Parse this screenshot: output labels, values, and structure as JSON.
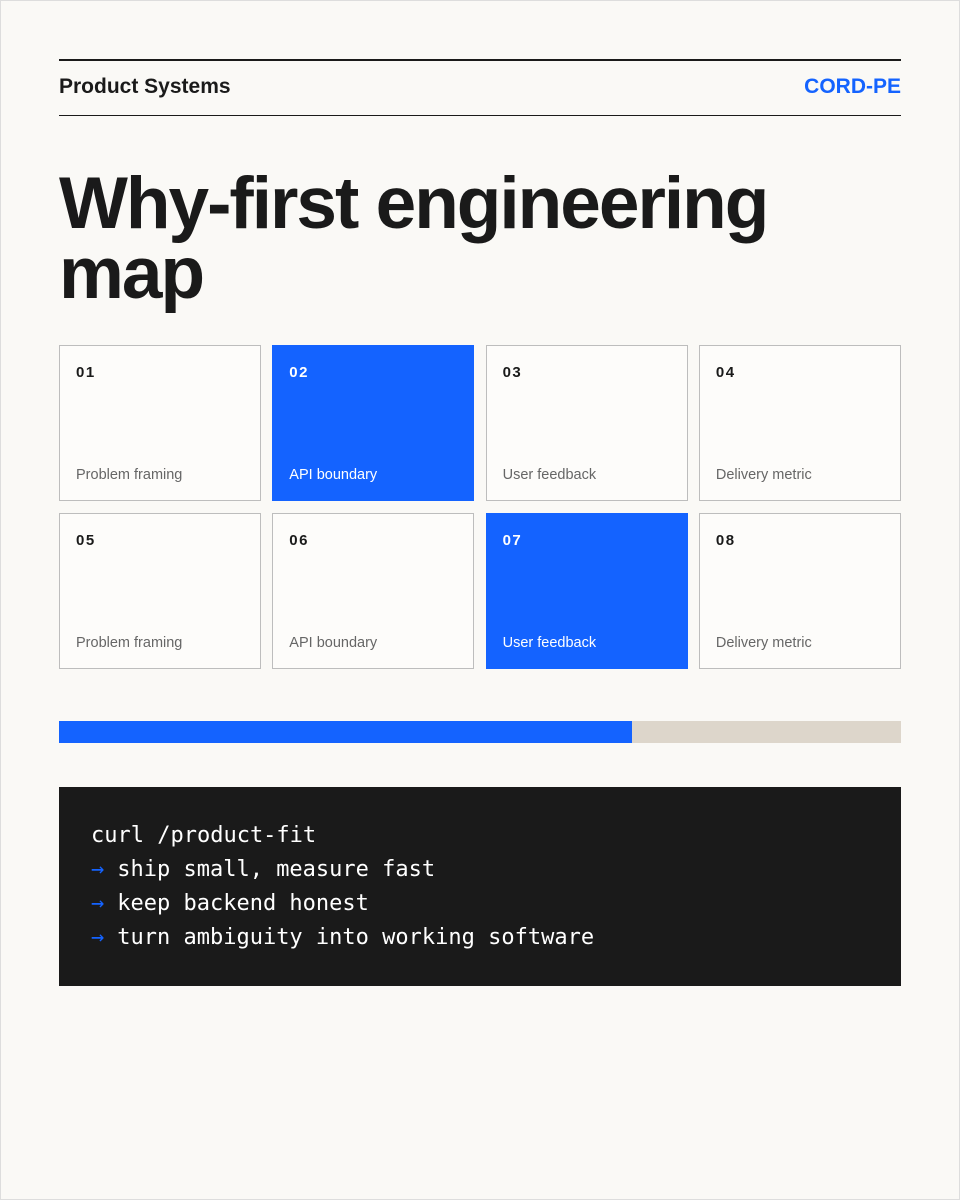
{
  "header": {
    "brand": "Product Systems",
    "code": "CORD-PE"
  },
  "title": "Why-first engineering map",
  "tiles": [
    {
      "number": "01",
      "label": "Problem framing",
      "highlighted": false
    },
    {
      "number": "02",
      "label": "API boundary",
      "highlighted": true
    },
    {
      "number": "03",
      "label": "User feedback",
      "highlighted": false
    },
    {
      "number": "04",
      "label": "Delivery metric",
      "highlighted": false
    },
    {
      "number": "05",
      "label": "Problem framing",
      "highlighted": false
    },
    {
      "number": "06",
      "label": "API boundary",
      "highlighted": false
    },
    {
      "number": "07",
      "label": "User feedback",
      "highlighted": true
    },
    {
      "number": "08",
      "label": "Delivery metric",
      "highlighted": false
    }
  ],
  "progress": {
    "value": 68,
    "max": 100
  },
  "code": {
    "command": "curl /product-fit",
    "bullet": "→",
    "lines": [
      "ship small, measure fast",
      "keep backend honest",
      "turn ambiguity into working software"
    ]
  }
}
